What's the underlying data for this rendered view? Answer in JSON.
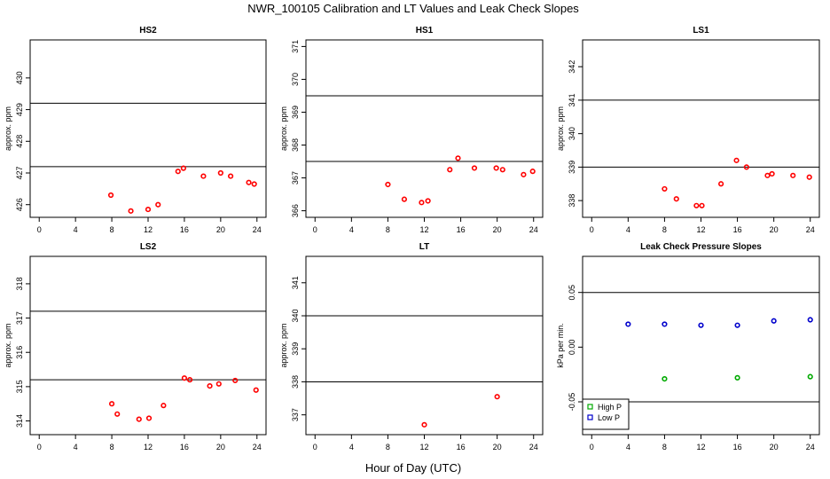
{
  "title": "NWR_100105  Calibration and LT Values and Leak Check Slopes",
  "xlabel": "Hour of Day (UTC)",
  "chart_data": [
    {
      "type": "scatter",
      "title": "HS2",
      "ylabel": "approx. ppm",
      "xlim": [
        -1,
        25
      ],
      "ylim": [
        425.6,
        431.2
      ],
      "xticks": [
        0,
        4,
        8,
        12,
        16,
        20,
        24
      ],
      "yticks": [
        426,
        427,
        428,
        429,
        430
      ],
      "hlines": [
        429.2,
        427.2
      ],
      "series": [
        {
          "color": "#ff0000",
          "x": [
            7.9,
            10.1,
            12.0,
            13.1,
            15.3,
            15.9,
            18.1,
            20.0,
            21.1,
            23.1,
            23.7
          ],
          "y": [
            426.3,
            425.8,
            425.85,
            426.0,
            427.05,
            427.15,
            426.9,
            427.0,
            426.9,
            426.7,
            426.65
          ]
        }
      ]
    },
    {
      "type": "scatter",
      "title": "HS1",
      "ylabel": "approx. ppm",
      "xlim": [
        -1,
        25
      ],
      "ylim": [
        365.8,
        371.2
      ],
      "xticks": [
        0,
        4,
        8,
        12,
        16,
        20,
        24
      ],
      "yticks": [
        366,
        367,
        368,
        369,
        370,
        371
      ],
      "hlines": [
        369.5,
        367.5
      ],
      "series": [
        {
          "color": "#ff0000",
          "x": [
            8.0,
            9.8,
            11.7,
            12.4,
            14.8,
            15.7,
            17.5,
            19.9,
            20.6,
            22.9,
            23.9
          ],
          "y": [
            366.8,
            366.35,
            366.25,
            366.3,
            367.25,
            367.6,
            367.3,
            367.3,
            367.25,
            367.1,
            367.2
          ]
        }
      ]
    },
    {
      "type": "scatter",
      "title": "LS1",
      "ylabel": "approx. ppm",
      "xlim": [
        -1,
        25
      ],
      "ylim": [
        337.5,
        342.8
      ],
      "xticks": [
        0,
        4,
        8,
        12,
        16,
        20,
        24
      ],
      "yticks": [
        338,
        339,
        340,
        341,
        342
      ],
      "hlines": [
        341.0,
        339.0
      ],
      "series": [
        {
          "color": "#ff0000",
          "x": [
            8.0,
            9.3,
            11.5,
            12.1,
            14.2,
            15.9,
            17.0,
            19.3,
            19.8,
            22.1,
            23.9
          ],
          "y": [
            338.35,
            338.05,
            337.85,
            337.85,
            338.5,
            339.2,
            339.0,
            338.75,
            338.8,
            338.75,
            338.7
          ]
        }
      ]
    },
    {
      "type": "scatter",
      "title": "LS2",
      "ylabel": "approx. ppm",
      "xlim": [
        -1,
        25
      ],
      "ylim": [
        313.6,
        318.8
      ],
      "xticks": [
        0,
        4,
        8,
        12,
        16,
        20,
        24
      ],
      "yticks": [
        314,
        315,
        316,
        317,
        318
      ],
      "hlines": [
        317.2,
        315.2
      ],
      "series": [
        {
          "color": "#ff0000",
          "x": [
            8.0,
            8.6,
            11.0,
            12.1,
            13.7,
            16.0,
            16.6,
            18.8,
            19.8,
            21.6,
            23.9
          ],
          "y": [
            314.5,
            314.2,
            314.05,
            314.08,
            314.45,
            315.25,
            315.2,
            315.02,
            315.08,
            315.18,
            314.9
          ]
        }
      ]
    },
    {
      "type": "scatter",
      "title": "LT",
      "ylabel": "approx. ppm",
      "xlim": [
        -1,
        25
      ],
      "ylim": [
        336.4,
        341.8
      ],
      "xticks": [
        0,
        4,
        8,
        12,
        16,
        20,
        24
      ],
      "yticks": [
        337,
        338,
        339,
        340,
        341
      ],
      "hlines": [
        340.0,
        338.0
      ],
      "series": [
        {
          "color": "#ff0000",
          "x": [
            12.0,
            20.0
          ],
          "y": [
            336.7,
            337.55
          ]
        }
      ]
    },
    {
      "type": "scatter",
      "title": "Leak Check Pressure Slopes",
      "ylabel": "kPa per min.",
      "xlim": [
        -1,
        25
      ],
      "ylim": [
        -0.08,
        0.083
      ],
      "xticks": [
        0,
        4,
        8,
        12,
        16,
        20,
        24
      ],
      "yticks": [
        -0.05,
        0.0,
        0.05
      ],
      "ytick_labels": [
        "-0.05",
        "0.00",
        "0.05"
      ],
      "hlines": [
        0.05,
        -0.05
      ],
      "legend": {
        "position": "bottom-left"
      },
      "series": [
        {
          "name": "High P",
          "color": "#00aa00",
          "x": [
            8.0,
            16.0,
            24.0
          ],
          "y": [
            -0.029,
            -0.028,
            -0.027
          ]
        },
        {
          "name": "Low P",
          "color": "#0000cc",
          "x": [
            4.0,
            8.0,
            12.0,
            16.0,
            20.0,
            24.0
          ],
          "y": [
            0.021,
            0.021,
            0.02,
            0.02,
            0.024,
            0.025
          ]
        }
      ]
    }
  ]
}
